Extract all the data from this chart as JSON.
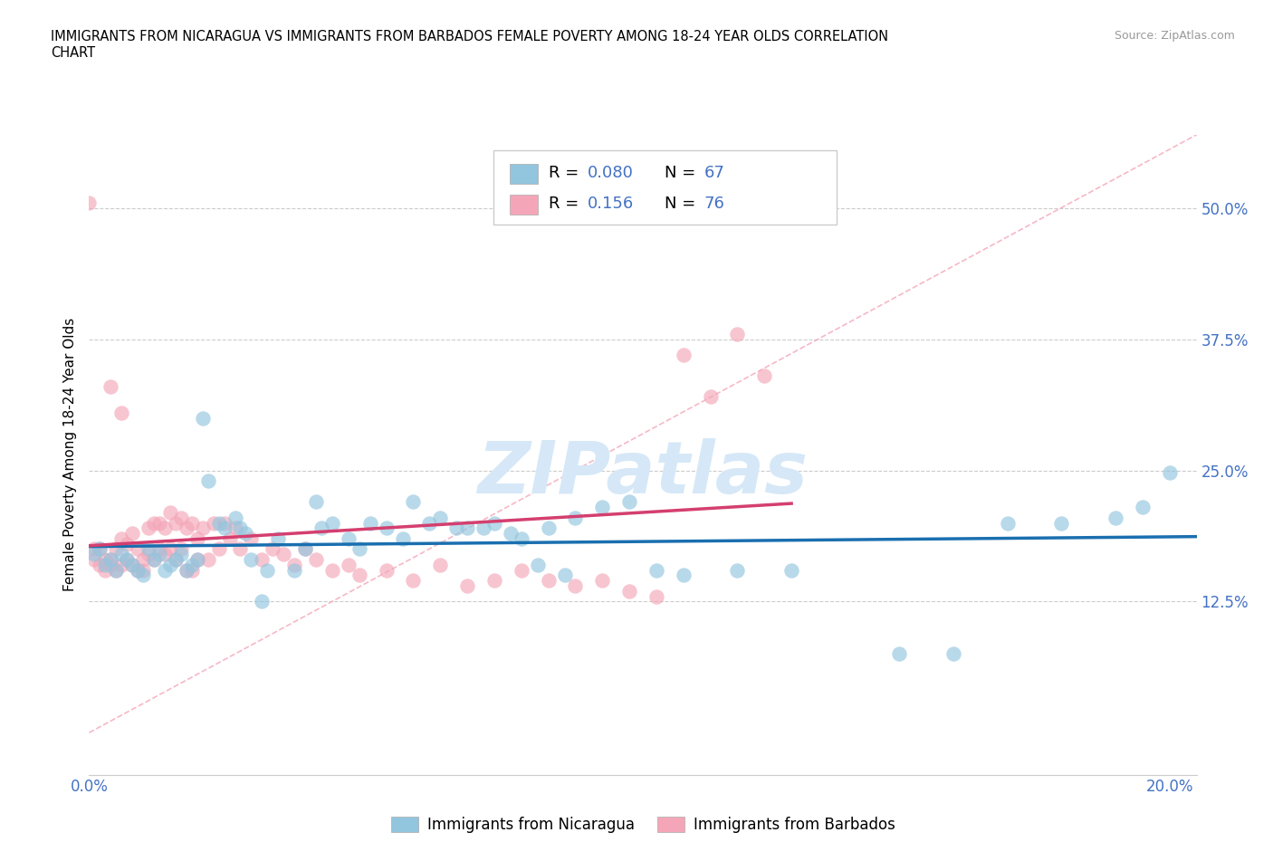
{
  "title_line1": "IMMIGRANTS FROM NICARAGUA VS IMMIGRANTS FROM BARBADOS FEMALE POVERTY AMONG 18-24 YEAR OLDS CORRELATION",
  "title_line2": "CHART",
  "source": "Source: ZipAtlas.com",
  "ylabel": "Female Poverty Among 18-24 Year Olds",
  "xlim": [
    0.0,
    0.205
  ],
  "ylim": [
    -0.04,
    0.57
  ],
  "blue_color": "#92c5de",
  "pink_color": "#f4a6b8",
  "blue_line_color": "#1a6faf",
  "pink_line_color": "#d43f6f",
  "diag_line_color": "#f4a6b8",
  "grid_color": "#cccccc",
  "R_blue": 0.08,
  "N_blue": 67,
  "R_pink": 0.156,
  "N_pink": 76,
  "legend_label_blue": "Immigrants from Nicaragua",
  "legend_label_pink": "Immigrants from Barbados",
  "watermark_text": "ZIPatlas",
  "tick_color": "#4472c4",
  "blue_x": [
    0.001,
    0.002,
    0.003,
    0.004,
    0.005,
    0.006,
    0.007,
    0.008,
    0.009,
    0.01,
    0.011,
    0.012,
    0.013,
    0.014,
    0.015,
    0.016,
    0.017,
    0.018,
    0.019,
    0.02,
    0.021,
    0.022,
    0.024,
    0.025,
    0.027,
    0.028,
    0.029,
    0.03,
    0.032,
    0.033,
    0.035,
    0.038,
    0.04,
    0.042,
    0.043,
    0.045,
    0.048,
    0.05,
    0.052,
    0.055,
    0.058,
    0.06,
    0.063,
    0.065,
    0.068,
    0.07,
    0.073,
    0.075,
    0.078,
    0.08,
    0.083,
    0.085,
    0.088,
    0.09,
    0.095,
    0.1,
    0.105,
    0.11,
    0.12,
    0.13,
    0.15,
    0.16,
    0.17,
    0.18,
    0.19,
    0.195,
    0.2
  ],
  "blue_y": [
    0.17,
    0.175,
    0.16,
    0.165,
    0.155,
    0.17,
    0.165,
    0.16,
    0.155,
    0.15,
    0.175,
    0.165,
    0.17,
    0.155,
    0.16,
    0.165,
    0.17,
    0.155,
    0.16,
    0.165,
    0.3,
    0.24,
    0.2,
    0.195,
    0.205,
    0.195,
    0.19,
    0.165,
    0.125,
    0.155,
    0.185,
    0.155,
    0.175,
    0.22,
    0.195,
    0.2,
    0.185,
    0.175,
    0.2,
    0.195,
    0.185,
    0.22,
    0.2,
    0.205,
    0.195,
    0.195,
    0.195,
    0.2,
    0.19,
    0.185,
    0.16,
    0.195,
    0.15,
    0.205,
    0.215,
    0.22,
    0.155,
    0.15,
    0.155,
    0.155,
    0.075,
    0.075,
    0.2,
    0.2,
    0.205,
    0.215,
    0.248
  ],
  "pink_x": [
    0.0,
    0.001,
    0.001,
    0.002,
    0.002,
    0.003,
    0.003,
    0.004,
    0.004,
    0.005,
    0.005,
    0.006,
    0.006,
    0.007,
    0.007,
    0.008,
    0.008,
    0.009,
    0.009,
    0.01,
    0.01,
    0.011,
    0.011,
    0.012,
    0.012,
    0.013,
    0.013,
    0.014,
    0.014,
    0.015,
    0.015,
    0.016,
    0.016,
    0.017,
    0.017,
    0.018,
    0.018,
    0.019,
    0.019,
    0.02,
    0.02,
    0.021,
    0.022,
    0.023,
    0.024,
    0.025,
    0.026,
    0.027,
    0.028,
    0.03,
    0.032,
    0.034,
    0.036,
    0.038,
    0.04,
    0.042,
    0.045,
    0.048,
    0.05,
    0.055,
    0.06,
    0.065,
    0.07,
    0.075,
    0.08,
    0.085,
    0.09,
    0.095,
    0.1,
    0.105,
    0.11,
    0.115,
    0.12,
    0.125,
    0.004,
    0.006
  ],
  "pink_y": [
    0.505,
    0.175,
    0.165,
    0.175,
    0.16,
    0.165,
    0.155,
    0.165,
    0.16,
    0.155,
    0.175,
    0.185,
    0.16,
    0.18,
    0.165,
    0.19,
    0.16,
    0.155,
    0.175,
    0.165,
    0.155,
    0.195,
    0.17,
    0.2,
    0.165,
    0.2,
    0.175,
    0.195,
    0.17,
    0.21,
    0.175,
    0.2,
    0.165,
    0.205,
    0.175,
    0.195,
    0.155,
    0.2,
    0.155,
    0.185,
    0.165,
    0.195,
    0.165,
    0.2,
    0.175,
    0.2,
    0.185,
    0.195,
    0.175,
    0.185,
    0.165,
    0.175,
    0.17,
    0.16,
    0.175,
    0.165,
    0.155,
    0.16,
    0.15,
    0.155,
    0.145,
    0.16,
    0.14,
    0.145,
    0.155,
    0.145,
    0.14,
    0.145,
    0.135,
    0.13,
    0.36,
    0.32,
    0.38,
    0.34,
    0.33,
    0.305
  ]
}
